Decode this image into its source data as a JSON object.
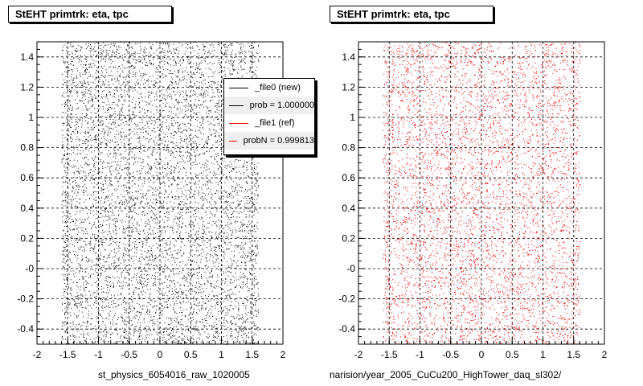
{
  "chart_data": [
    {
      "type": "scatter",
      "title": "StEHT primtrk: eta, tpc",
      "xlabel": "st_physics_6054016_raw_1020005",
      "ylabel": "",
      "xlim": [
        -2,
        2
      ],
      "ylim": [
        -0.5,
        1.5
      ],
      "x_ticks": [
        "-2",
        "-1.5",
        "-1",
        "-0.5",
        "0",
        "0.5",
        "1",
        "1.5",
        "2"
      ],
      "y_ticks": [
        "-0.4",
        "-0.2",
        "-0",
        "0.2",
        "0.4",
        "0.6",
        "0.8",
        "1",
        "1.2",
        "1.4"
      ],
      "grid": true,
      "series": [
        {
          "name": "_file0 (new)",
          "color": "#000000",
          "x_range": [
            -1.6,
            1.6
          ],
          "y_range": [
            -0.5,
            1.5
          ],
          "density": "uniform"
        }
      ],
      "legend": {
        "placement": "top-right",
        "entries": [
          {
            "label": "_file0 (new)",
            "color": "#000000"
          },
          {
            "label": "prob = 1.000000",
            "color": "#000000"
          },
          {
            "label": "_file1 (ref)",
            "color": "#ff0000"
          },
          {
            "label": "probN = 0.999813",
            "color": "#ff0000"
          }
        ]
      }
    },
    {
      "type": "scatter",
      "title": "StEHT primtrk: eta, tpc",
      "xlabel": "narision/year_2005_CuCu200_HighTower_daq_sl302/",
      "ylabel": "",
      "xlim": [
        -2,
        2
      ],
      "ylim": [
        -0.5,
        1.5
      ],
      "x_ticks": [
        "-2",
        "-1.5",
        "-1",
        "-0.5",
        "0",
        "0.5",
        "1",
        "1.5",
        "2"
      ],
      "y_ticks": [
        "-0.4",
        "-0.2",
        "-0",
        "0.2",
        "0.4",
        "0.6",
        "0.8",
        "1",
        "1.2",
        "1.4"
      ],
      "grid": true,
      "series": [
        {
          "name": "_file1 (ref)",
          "color": "#ff0000",
          "x_range": [
            -1.6,
            1.6
          ],
          "y_range": [
            -0.5,
            1.5
          ],
          "density": "uniform"
        }
      ]
    }
  ]
}
